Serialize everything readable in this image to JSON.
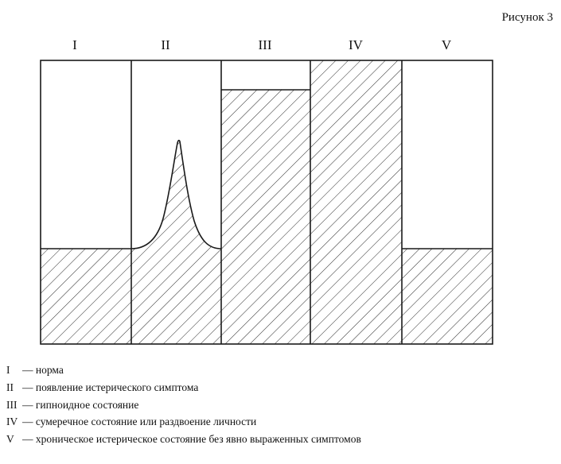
{
  "figure_label": "Рисунок 3",
  "columns": [
    {
      "label": "I"
    },
    {
      "label": "II"
    },
    {
      "label": "III"
    },
    {
      "label": "IV"
    },
    {
      "label": "V"
    }
  ],
  "legend": [
    {
      "code": "I",
      "dash": "—",
      "text": "норма"
    },
    {
      "code": "II",
      "dash": "—",
      "text": "появление истерического симптома"
    },
    {
      "code": "III",
      "dash": "—",
      "text": "гипноидное состояние"
    },
    {
      "code": "IV",
      "dash": "—",
      "text": "сумеречное состояние или раздвоение личности"
    },
    {
      "code": "V",
      "dash": "—",
      "text": "хроническое истерическое состояние без явно выраженных симптомов"
    }
  ],
  "colors": {
    "line": "#1a1a1a",
    "hatch": "#2a2a2a",
    "background": "#ffffff"
  }
}
